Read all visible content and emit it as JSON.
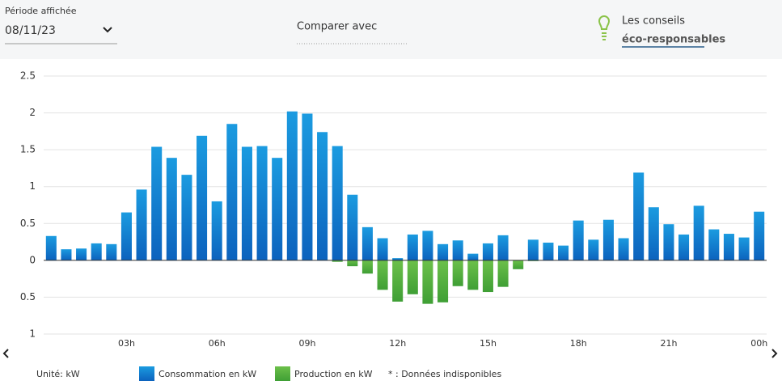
{
  "header": {
    "period_label": "Période affichée",
    "period_value": "08/11/23",
    "compare": "Comparer avec",
    "tips_line1": "Les conseils",
    "tips_line2": "éco-responsables"
  },
  "footer": {
    "unit": "Unité: kW",
    "note": "* : Données indisponibles"
  },
  "chart_data": {
    "type": "bar",
    "categories": [
      null,
      null,
      null,
      null,
      null,
      "03h",
      null,
      null,
      null,
      null,
      null,
      "06h",
      null,
      null,
      null,
      null,
      null,
      "09h",
      null,
      null,
      null,
      null,
      null,
      "12h",
      null,
      null,
      null,
      null,
      null,
      "15h",
      null,
      null,
      null,
      null,
      null,
      "18h",
      null,
      null,
      null,
      null,
      null,
      "21h",
      null,
      null,
      null,
      null,
      null,
      "00h"
    ],
    "series": [
      {
        "name": "Consommation en kW",
        "color": "#0f72c8",
        "values": [
          0.33,
          0.15,
          0.16,
          0.23,
          0.22,
          0.65,
          0.96,
          1.54,
          1.39,
          1.16,
          1.69,
          0.8,
          1.85,
          1.54,
          1.55,
          1.39,
          2.02,
          1.99,
          1.74,
          1.55,
          0.89,
          0.45,
          0.3,
          0.03,
          0.35,
          0.4,
          0.22,
          0.27,
          0.09,
          0.23,
          0.34,
          0,
          0.28,
          0.24,
          0.2,
          0.54,
          0.28,
          0.55,
          0.3,
          1.19,
          0.72,
          0.49,
          0.35,
          0.74,
          0.42,
          0.36,
          0.31,
          0.66
        ]
      },
      {
        "name": "Production en kW",
        "color": "#4fad3c",
        "values": [
          0,
          0,
          0,
          0,
          0,
          0,
          0,
          0,
          0,
          0,
          0,
          0,
          0,
          0,
          0,
          0,
          0,
          0,
          0,
          -0.02,
          -0.08,
          -0.18,
          -0.4,
          -0.56,
          -0.46,
          -0.59,
          -0.57,
          -0.35,
          -0.4,
          -0.43,
          -0.36,
          -0.12,
          -0.01,
          0,
          0,
          0,
          0,
          0,
          0,
          0,
          0,
          0,
          0,
          0,
          0,
          0,
          0,
          0
        ]
      }
    ],
    "ylim": [
      -1,
      2.5
    ],
    "yticks": [
      {
        "value": -1,
        "label": "1"
      },
      {
        "value": -0.5,
        "label": "0.5"
      },
      0,
      0.5,
      1,
      1.5,
      2,
      2.5
    ],
    "grid": true
  }
}
